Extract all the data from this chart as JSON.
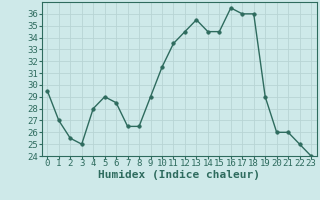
{
  "x": [
    0,
    1,
    2,
    3,
    4,
    5,
    6,
    7,
    8,
    9,
    10,
    11,
    12,
    13,
    14,
    15,
    16,
    17,
    18,
    19,
    20,
    21,
    22,
    23
  ],
  "y": [
    29.5,
    27.0,
    25.5,
    25.0,
    28.0,
    29.0,
    28.5,
    26.5,
    26.5,
    29.0,
    31.5,
    33.5,
    34.5,
    35.5,
    34.5,
    34.5,
    36.5,
    36.0,
    36.0,
    29.0,
    26.0,
    26.0,
    25.0,
    24.0
  ],
  "line_color": "#2e6b5e",
  "marker": "o",
  "markersize": 2.5,
  "linewidth": 1.0,
  "bg_color": "#cee9e9",
  "grid_color": "#b8d4d4",
  "xlabel": "Humidex (Indice chaleur)",
  "ylim": [
    24,
    37
  ],
  "xlim": [
    -0.5,
    23.5
  ],
  "yticks": [
    24,
    25,
    26,
    27,
    28,
    29,
    30,
    31,
    32,
    33,
    34,
    35,
    36
  ],
  "xticks": [
    0,
    1,
    2,
    3,
    4,
    5,
    6,
    7,
    8,
    9,
    10,
    11,
    12,
    13,
    14,
    15,
    16,
    17,
    18,
    19,
    20,
    21,
    22,
    23
  ],
  "tick_fontsize": 6.5,
  "xlabel_fontsize": 8,
  "tick_color": "#2e6b5e",
  "label_color": "#2e6b5e"
}
